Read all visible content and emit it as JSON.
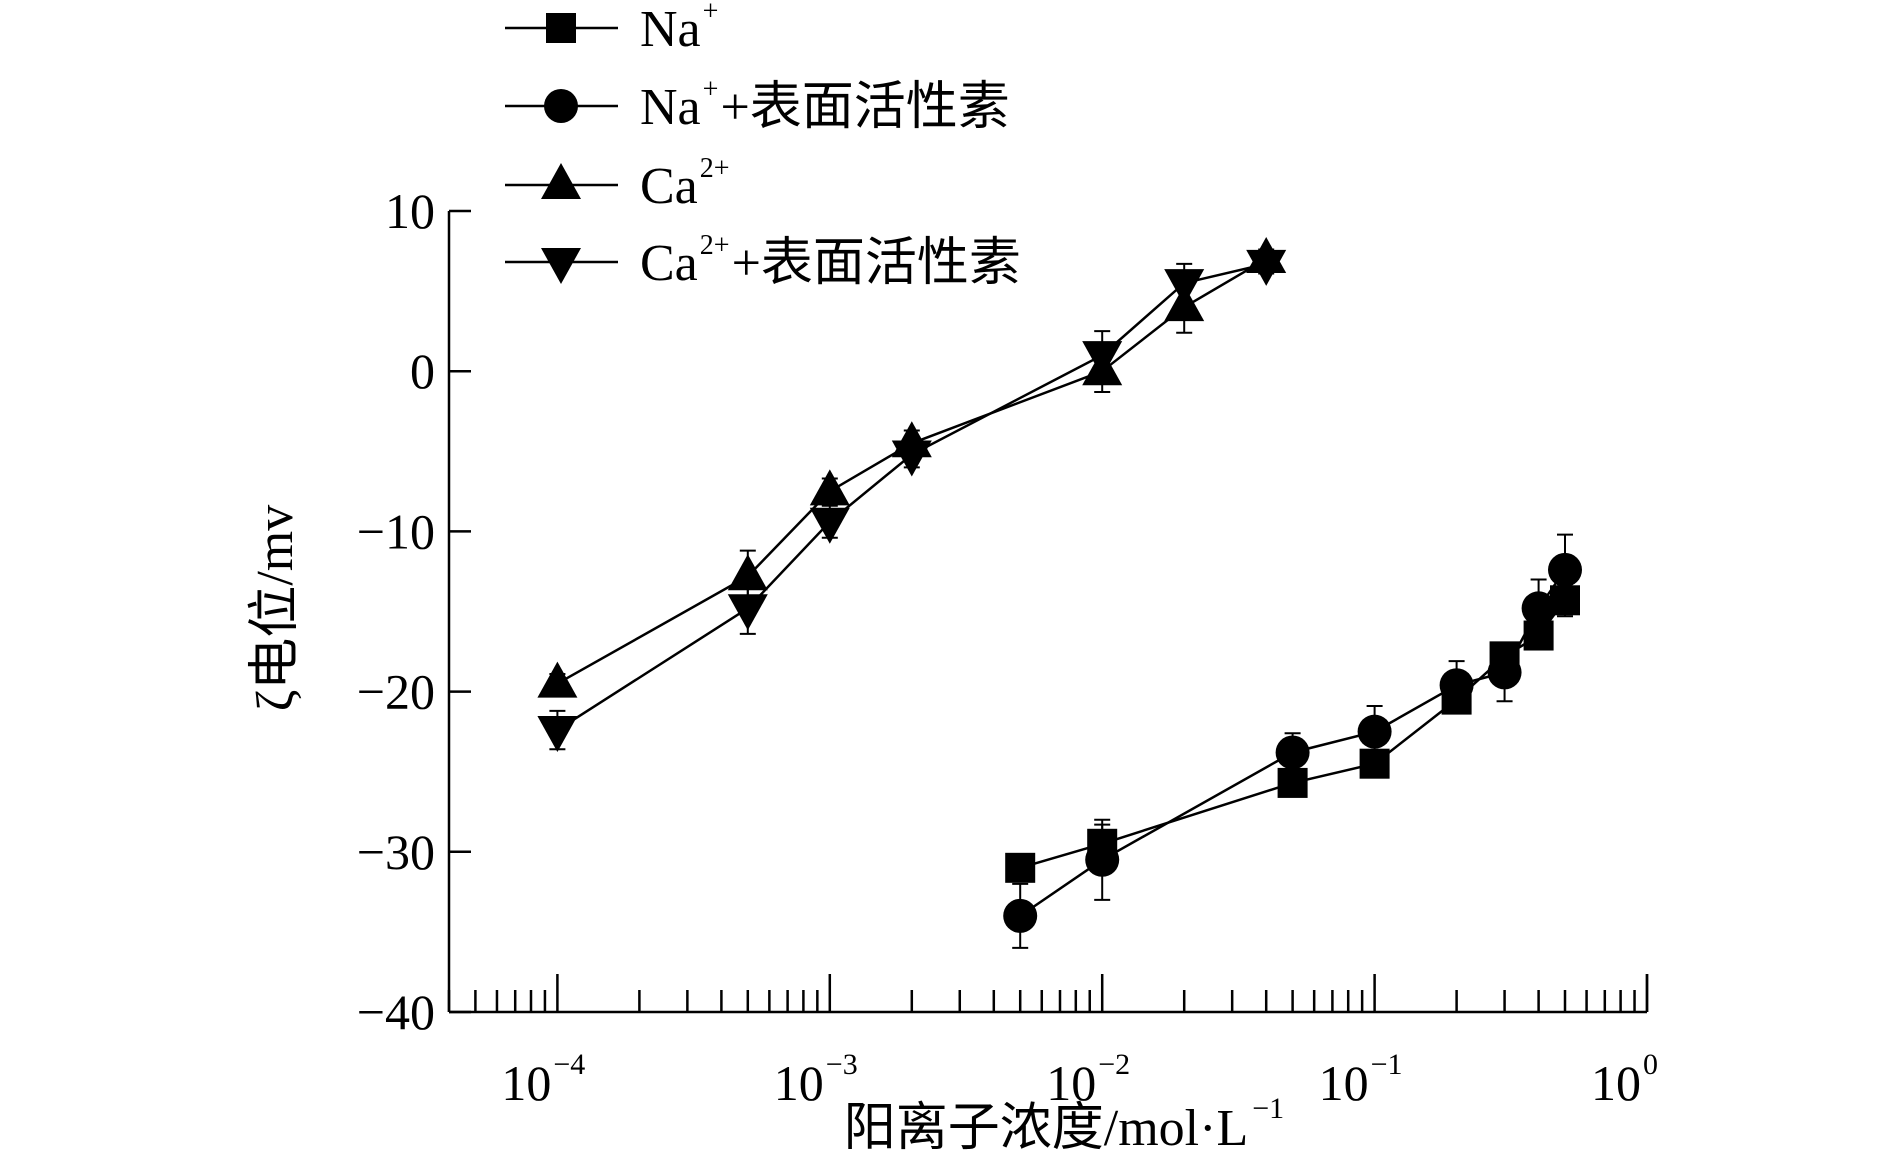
{
  "chart_data": {
    "type": "line",
    "title": "",
    "xlabel": "阳离子浓度/mol·L",
    "xlabel_sup": "−1",
    "ylabel": "ζ电位/mv",
    "xscale": "log",
    "xlim": [
      4e-05,
      1
    ],
    "ylim": [
      -40,
      10
    ],
    "x_ticks": [
      {
        "value": 0.0001,
        "base": "10",
        "exp": "−4"
      },
      {
        "value": 0.001,
        "base": "10",
        "exp": "−3"
      },
      {
        "value": 0.01,
        "base": "10",
        "exp": "−2"
      },
      {
        "value": 0.1,
        "base": "10",
        "exp": "−1"
      },
      {
        "value": 1,
        "base": "10",
        "exp": "0"
      }
    ],
    "y_ticks": [
      {
        "value": 10,
        "label": "10"
      },
      {
        "value": 0,
        "label": "0"
      },
      {
        "value": -10,
        "label": "−10"
      },
      {
        "value": -20,
        "label": "−20"
      },
      {
        "value": -30,
        "label": "−30"
      },
      {
        "value": -40,
        "label": "−40"
      }
    ],
    "legend_position": "top-left",
    "series": [
      {
        "name_base": "Na",
        "name_sup": "+",
        "name_suffix": "",
        "marker": "square",
        "x": [
          0.005,
          0.01,
          0.05,
          0.1,
          0.2,
          0.3,
          0.4,
          0.5
        ],
        "y": [
          -31.0,
          -29.5,
          -25.7,
          -24.5,
          -20.5,
          -17.8,
          -16.5,
          -14.3
        ],
        "err": [
          0.6,
          1.2,
          0.6,
          0.6,
          0.8,
          0.6,
          0.8,
          1.0
        ]
      },
      {
        "name_base": "Na",
        "name_sup": "+",
        "name_suffix": "+表面活性素",
        "marker": "circle",
        "x": [
          0.005,
          0.01,
          0.05,
          0.1,
          0.2,
          0.3,
          0.4,
          0.5
        ],
        "y": [
          -34.0,
          -30.5,
          -23.8,
          -22.5,
          -19.6,
          -18.8,
          -14.8,
          -12.4
        ],
        "err": [
          2.0,
          2.5,
          1.2,
          1.6,
          1.5,
          1.8,
          1.8,
          2.2
        ]
      },
      {
        "name_base": "Ca",
        "name_sup": "2+",
        "name_suffix": "",
        "marker": "triangle-up",
        "x": [
          0.0001,
          0.0005,
          0.001,
          0.002,
          0.01,
          0.02,
          0.04
        ],
        "y": [
          -19.5,
          -12.8,
          -7.5,
          -4.5,
          0.0,
          4.0,
          7.0
        ],
        "err": [
          0.6,
          1.6,
          0.8,
          0.8,
          1.3,
          1.6,
          0.6
        ]
      },
      {
        "name_base": "Ca",
        "name_sup": "2+",
        "name_suffix": "+表面活性素",
        "marker": "triangle-down",
        "x": [
          0.0001,
          0.0005,
          0.001,
          0.002,
          0.01,
          0.02,
          0.04
        ],
        "y": [
          -22.4,
          -14.8,
          -9.4,
          -5.2,
          1.0,
          5.5,
          6.7
        ],
        "err": [
          1.2,
          1.6,
          1.0,
          0.8,
          1.5,
          1.2,
          0.6
        ]
      }
    ]
  }
}
